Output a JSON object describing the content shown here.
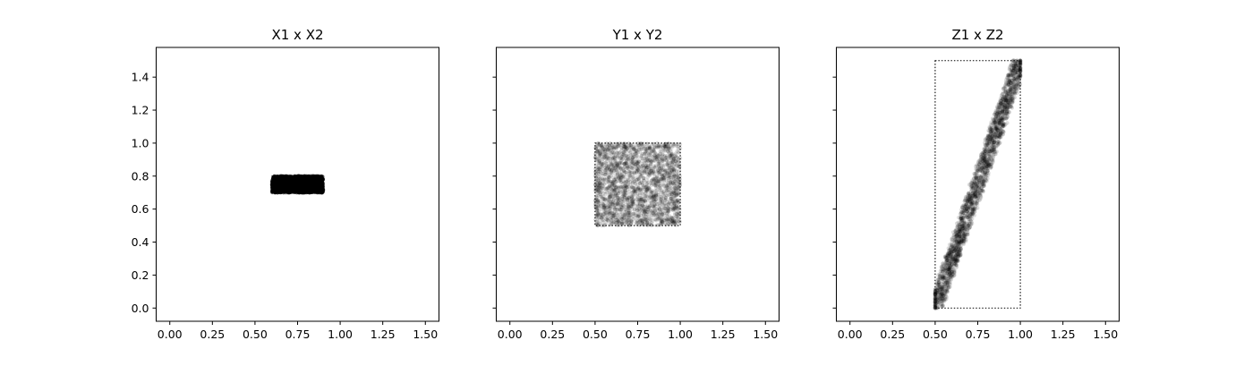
{
  "chart_data": [
    {
      "type": "scatter",
      "title": "X1 x X2",
      "xlabel": "",
      "ylabel": "",
      "xlim": [
        -0.08,
        1.58
      ],
      "ylim": [
        -0.08,
        1.58
      ],
      "xticks": [
        "0.00",
        "0.25",
        "0.50",
        "0.75",
        "1.00",
        "1.25",
        "1.50"
      ],
      "yticks": [
        "0.0",
        "0.2",
        "0.4",
        "0.6",
        "0.8",
        "1.0",
        "1.2",
        "1.4"
      ],
      "grid": false,
      "region": {
        "x_min": 0.6,
        "x_max": 0.9,
        "y_min": 0.7,
        "y_max": 0.8,
        "outline": "dotted"
      },
      "points_description": "dense uniform cloud filling the region",
      "point_color": "#000000"
    },
    {
      "type": "scatter",
      "title": "Y1 x Y2",
      "xlabel": "",
      "ylabel": "",
      "xlim": [
        -0.08,
        1.58
      ],
      "ylim": [
        -0.08,
        1.58
      ],
      "xticks": [
        "0.00",
        "0.25",
        "0.50",
        "0.75",
        "1.00",
        "1.25",
        "1.50"
      ],
      "yticks": [],
      "grid": false,
      "region": {
        "x_min": 0.5,
        "x_max": 1.0,
        "y_min": 0.5,
        "y_max": 1.0,
        "outline": "dotted"
      },
      "points_description": "uniform cloud filling the square",
      "point_color": "#000000"
    },
    {
      "type": "scatter",
      "title": "Z1 x Z2",
      "xlabel": "",
      "ylabel": "",
      "xlim": [
        -0.08,
        1.58
      ],
      "ylim": [
        -0.08,
        1.58
      ],
      "xticks": [
        "0.00",
        "0.25",
        "0.50",
        "0.75",
        "1.00",
        "1.25",
        "1.50"
      ],
      "yticks": [],
      "grid": false,
      "region": {
        "x_min": 0.5,
        "x_max": 1.0,
        "y_min": 0.0,
        "y_max": 1.5,
        "outline": "dotted"
      },
      "band": {
        "from": [
          0.5,
          0.0
        ],
        "to": [
          1.0,
          1.5
        ],
        "half_width_x": 0.04
      },
      "points_description": "diagonal band from (0.5, 0.0) to (1.0, 1.5)",
      "point_color": "#000000"
    }
  ]
}
